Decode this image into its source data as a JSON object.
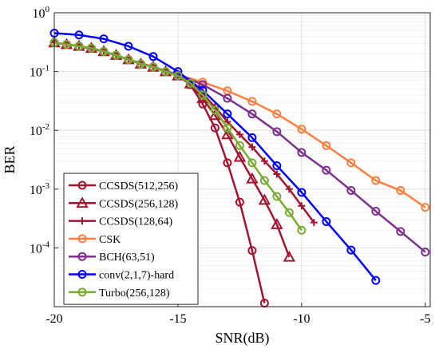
{
  "chart_data": {
    "type": "line",
    "xlabel": "SNR(dB)",
    "ylabel": "BER",
    "xlim": [
      -20,
      -4.8
    ],
    "ylim": [
      1e-05,
      1
    ],
    "yscale": "log",
    "grid": true,
    "legend_position": "bottom-left",
    "xticks": [
      -20,
      -15,
      -10,
      -5
    ],
    "xtick_labels": [
      "-20",
      "-15",
      "-10",
      "-5"
    ],
    "yticks": [
      1,
      0.1,
      0.01,
      0.001,
      0.0001
    ],
    "ytick_labels": [
      {
        "base": "10",
        "exp": "0"
      },
      {
        "base": "10",
        "exp": "-1"
      },
      {
        "base": "10",
        "exp": "-2"
      },
      {
        "base": "10",
        "exp": "-3"
      },
      {
        "base": "10",
        "exp": "-4"
      }
    ],
    "series": [
      {
        "name": "CCSDS(512,256)",
        "color": "#a2142f",
        "marker": "circle",
        "x": [
          -20,
          -19.5,
          -19,
          -18.5,
          -18,
          -17.5,
          -17,
          -16.5,
          -16,
          -15.5,
          -15,
          -14.5,
          -14,
          -13.5,
          -13,
          -12.5,
          -12,
          -11.5
        ],
        "y": [
          0.31,
          0.29,
          0.27,
          0.25,
          0.22,
          0.19,
          0.16,
          0.135,
          0.12,
          0.1,
          0.085,
          0.06,
          0.028,
          0.011,
          0.0028,
          0.0006,
          9e-05,
          1.15e-05
        ]
      },
      {
        "name": "CCSDS(256,128)",
        "color": "#a2142f",
        "marker": "triangle",
        "x": [
          -20,
          -19.5,
          -19,
          -18.5,
          -18,
          -17.5,
          -17,
          -16.5,
          -16,
          -15.5,
          -15,
          -14.5,
          -14,
          -13.5,
          -13,
          -12.5,
          -12,
          -11.5,
          -11,
          -10.5
        ],
        "y": [
          0.31,
          0.29,
          0.27,
          0.25,
          0.22,
          0.19,
          0.16,
          0.135,
          0.12,
          0.1,
          0.085,
          0.062,
          0.035,
          0.018,
          0.0085,
          0.0035,
          0.0015,
          0.00065,
          0.00025,
          7e-05
        ]
      },
      {
        "name": "CCSDS(128,64)",
        "color": "#a2142f",
        "marker": "plus",
        "x": [
          -20,
          -19.5,
          -19,
          -18.5,
          -18,
          -17.5,
          -17,
          -16.5,
          -16,
          -15.5,
          -15,
          -14.5,
          -14,
          -13.5,
          -13,
          -12.5,
          -12,
          -11.5,
          -11,
          -10.5,
          -10,
          -9.5
        ],
        "y": [
          0.31,
          0.29,
          0.27,
          0.25,
          0.22,
          0.19,
          0.16,
          0.135,
          0.12,
          0.1,
          0.085,
          0.065,
          0.042,
          0.025,
          0.014,
          0.0085,
          0.0052,
          0.003,
          0.0018,
          0.001,
          0.00052,
          0.00027
        ]
      },
      {
        "name": "CSK",
        "color": "#ff7f3f",
        "marker": "circle",
        "x": [
          -20,
          -19,
          -18,
          -17,
          -16,
          -15,
          -14,
          -13,
          -12,
          -11,
          -10,
          -9,
          -8,
          -7,
          -6,
          -5
        ],
        "y": [
          0.31,
          0.27,
          0.22,
          0.16,
          0.12,
          0.088,
          0.066,
          0.047,
          0.031,
          0.019,
          0.0105,
          0.0055,
          0.0028,
          0.0014,
          0.00095,
          0.00049
        ]
      },
      {
        "name": "BCH(63,51)",
        "color": "#7e2f8e",
        "marker": "circle",
        "x": [
          -20,
          -19,
          -18,
          -17,
          -16,
          -15,
          -14,
          -13,
          -12,
          -11,
          -10,
          -9,
          -8,
          -7,
          -6,
          -5
        ],
        "y": [
          0.31,
          0.27,
          0.22,
          0.16,
          0.12,
          0.088,
          0.06,
          0.035,
          0.019,
          0.0095,
          0.0042,
          0.0021,
          0.00095,
          0.00042,
          0.00019,
          8.5e-05
        ]
      },
      {
        "name": "conv(2,1,7)-hard",
        "color": "#0000ff",
        "marker": "circle",
        "x": [
          -20,
          -19,
          -18,
          -17,
          -16,
          -15,
          -14,
          -13,
          -12,
          -11,
          -10,
          -9,
          -8,
          -7
        ],
        "y": [
          0.45,
          0.42,
          0.36,
          0.27,
          0.18,
          0.1,
          0.048,
          0.019,
          0.0075,
          0.0025,
          0.00088,
          0.00028,
          9.2e-05,
          2.8e-05
        ]
      },
      {
        "name": "Turbo(256,128)",
        "color": "#77ac30",
        "marker": "circle",
        "x": [
          -20,
          -19.5,
          -19,
          -18.5,
          -18,
          -17.5,
          -17,
          -16.5,
          -16,
          -15.5,
          -15,
          -14.5,
          -14,
          -13.5,
          -13,
          -12.5,
          -12,
          -11.5,
          -11,
          -10.5,
          -10
        ],
        "y": [
          0.31,
          0.29,
          0.27,
          0.25,
          0.22,
          0.19,
          0.16,
          0.135,
          0.12,
          0.1,
          0.085,
          0.063,
          0.04,
          0.022,
          0.011,
          0.0055,
          0.0028,
          0.0014,
          0.00075,
          0.0004,
          0.0002
        ]
      }
    ]
  }
}
